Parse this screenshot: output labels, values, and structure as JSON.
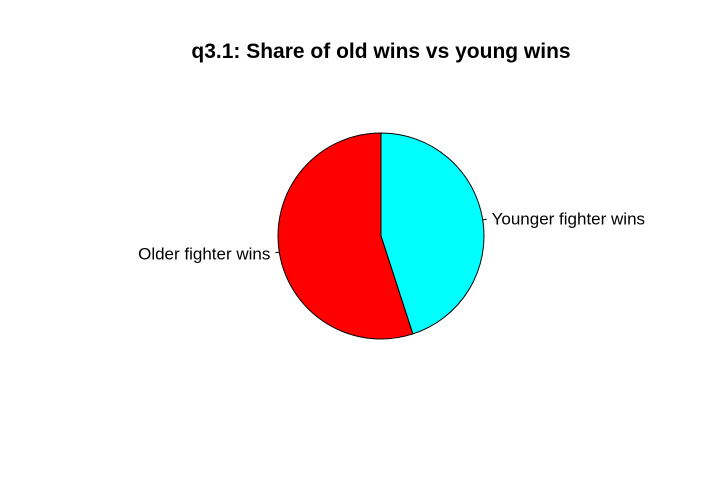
{
  "chart_data": {
    "type": "pie",
    "title": "q3.1: Share of old wins vs young wins",
    "slices": [
      {
        "label": "Younger fighter wins",
        "value": 45,
        "color": "#00FFFF"
      },
      {
        "label": "Older fighter wins",
        "value": 55,
        "color": "#FF0000"
      }
    ],
    "start": "12 o'clock",
    "direction": "clockwise",
    "legend": "none",
    "slice_outline_color": "#000000"
  }
}
